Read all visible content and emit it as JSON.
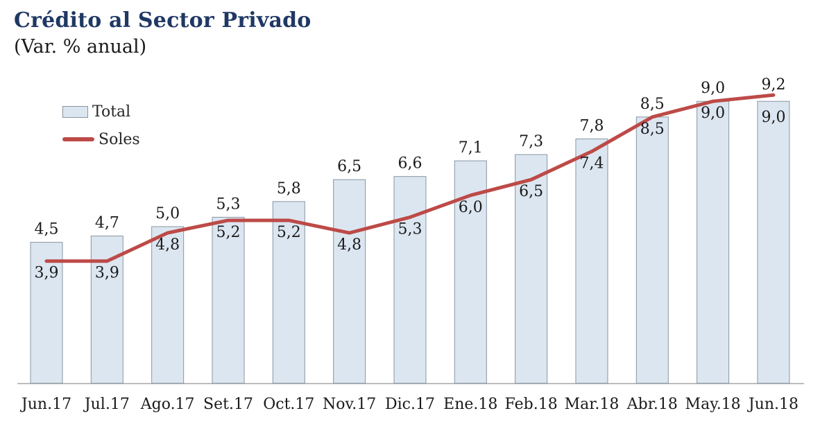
{
  "colors": {
    "title": "#1f3864",
    "subtitle_text": "#1a1a1a",
    "bar_fill": "#dce6f1",
    "bar_border": "#8795a0",
    "line": "#bd4a47",
    "label_text": "#1a1a1a",
    "axis_line": "#a6a6a6",
    "background": "#ffffff"
  },
  "chart_data": {
    "type": "bar+line",
    "title": "Crédito al Sector Privado",
    "subtitle": "(Var. % anual)",
    "xlabel": "",
    "ylabel": "",
    "ylim": [
      0,
      12.2
    ],
    "grid": false,
    "y_axis_visible": false,
    "legend_position": "top-left",
    "decimal_separator": ",",
    "categories": [
      "Jun.17",
      "Jul.17",
      "Ago.17",
      "Set.17",
      "Oct.17",
      "Nov.17",
      "Dic.17",
      "Ene.18",
      "Feb.18",
      "Mar.18",
      "Abr.18",
      "May.18",
      "Jun.18"
    ],
    "series": [
      {
        "name": "Total",
        "type": "bar",
        "values": [
          4.5,
          4.7,
          5.0,
          5.3,
          5.8,
          6.5,
          6.6,
          7.1,
          7.3,
          7.8,
          8.5,
          9.0,
          9.0
        ],
        "labels": [
          "4,5",
          "4,7",
          "5,0",
          "5,3",
          "5,8",
          "6,5",
          "6,6",
          "7,1",
          "7,3",
          "7,8",
          "8,5",
          "9,0",
          "9,0"
        ]
      },
      {
        "name": "Soles",
        "type": "line",
        "values": [
          3.9,
          3.9,
          4.8,
          5.2,
          5.2,
          4.8,
          5.3,
          6.0,
          6.5,
          7.4,
          8.5,
          9.0,
          9.2
        ],
        "labels": [
          "3,9",
          "3,9",
          "4,8",
          "5,2",
          "5,2",
          "4,8",
          "5,3",
          "6,0",
          "6,5",
          "7,4",
          "8,5",
          "9,0",
          "9,2"
        ]
      }
    ]
  }
}
